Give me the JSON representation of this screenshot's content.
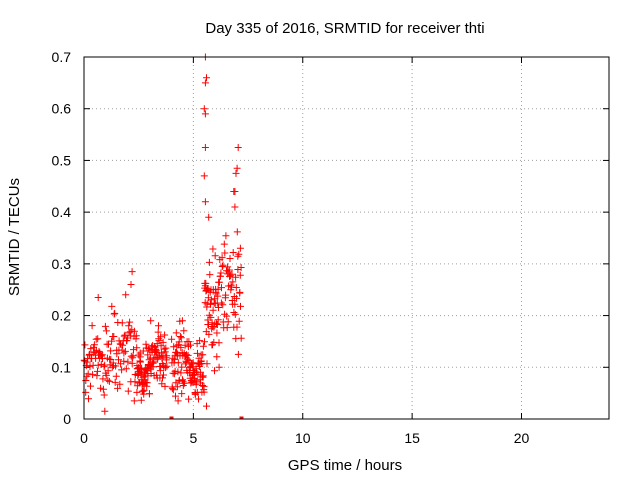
{
  "chart_data": {
    "type": "scatter",
    "title": "Day 335 of 2016, SRMTID for receiver thti",
    "xlabel": "GPS time / hours",
    "ylabel": "SRMTID / TECUs",
    "xlim": [
      0,
      24
    ],
    "ylim": [
      0,
      0.7
    ],
    "xticks": [
      0,
      5,
      10,
      15,
      20
    ],
    "xtick_labels": [
      "0",
      "5",
      "10",
      "15",
      "20"
    ],
    "yticks": [
      0,
      0.1,
      0.2,
      0.3,
      0.4,
      0.5,
      0.6,
      0.7
    ],
    "ytick_labels": [
      "0",
      "0.1",
      "0.2",
      "0.3",
      "0.4",
      "0.5",
      "0.6",
      "0.7"
    ],
    "grid": true,
    "marker": "+",
    "color": "#ff0000",
    "segments": [
      {
        "x0": 0.0,
        "x1": 1.2,
        "ybase": 0.11,
        "yspread": 0.06
      },
      {
        "x0": 1.2,
        "x1": 2.4,
        "ybase": 0.14,
        "yspread": 0.08
      },
      {
        "x0": 2.4,
        "x1": 3.0,
        "ybase": 0.09,
        "yspread": 0.05
      },
      {
        "x0": 3.0,
        "x1": 3.8,
        "ybase": 0.12,
        "yspread": 0.05
      },
      {
        "x0": 4.0,
        "x1": 4.8,
        "ybase": 0.11,
        "yspread": 0.06
      },
      {
        "x0": 4.8,
        "x1": 5.5,
        "ybase": 0.09,
        "yspread": 0.05
      },
      {
        "x0": 5.5,
        "x1": 6.2,
        "ybase": 0.22,
        "yspread": 0.12
      },
      {
        "x0": 6.2,
        "x1": 7.2,
        "ybase": 0.25,
        "yspread": 0.1
      }
    ],
    "points_per_segment": 60,
    "highlights": [
      [
        5.55,
        0.7
      ],
      [
        5.6,
        0.66
      ],
      [
        5.55,
        0.65
      ],
      [
        5.5,
        0.6
      ],
      [
        5.55,
        0.59
      ],
      [
        5.55,
        0.525
      ],
      [
        7.05,
        0.525
      ],
      [
        5.5,
        0.47
      ],
      [
        7.0,
        0.485
      ],
      [
        6.95,
        0.475
      ],
      [
        6.9,
        0.44
      ],
      [
        6.85,
        0.44
      ],
      [
        5.55,
        0.42
      ],
      [
        5.7,
        0.39
      ],
      [
        6.9,
        0.41
      ],
      [
        2.2,
        0.285
      ],
      [
        2.15,
        0.26
      ],
      [
        0.65,
        0.235
      ],
      [
        3.05,
        0.19
      ],
      [
        4.5,
        0.19
      ],
      [
        2.3,
        0.035
      ],
      [
        4.3,
        0.035
      ],
      [
        5.6,
        0.025
      ],
      [
        0.95,
        0.015
      ],
      [
        7.15,
        0.33
      ]
    ],
    "gap_markers": [
      4.0,
      7.2
    ]
  }
}
